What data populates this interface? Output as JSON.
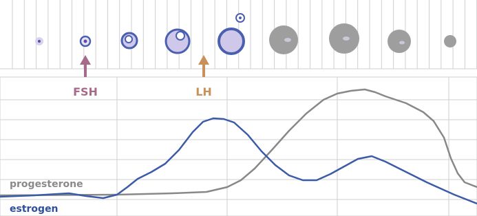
{
  "arrows": [
    {
      "label": "FSH"
    },
    {
      "label": "LH"
    }
  ],
  "curves": [
    {
      "label": "progesterone"
    },
    {
      "label": "estrogen"
    }
  ]
}
